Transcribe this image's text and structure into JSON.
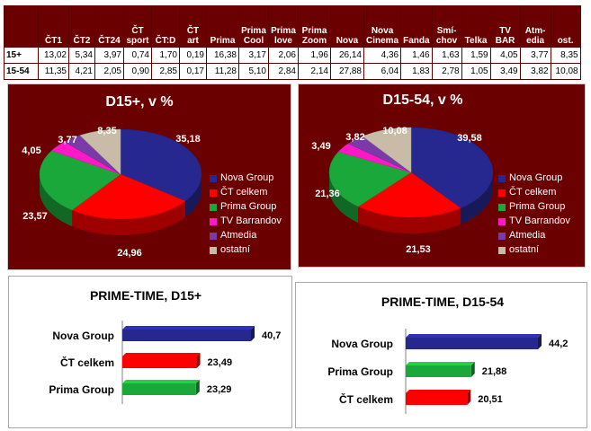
{
  "table": {
    "columns": [
      "ČT1",
      "ČT2",
      "ČT24",
      "ČT sport",
      "ČT:D",
      "ČT art",
      "Prima",
      "Prima Cool",
      "Prima love",
      "Prima Zoom",
      "Nova",
      "Nova Cinema",
      "Fanda",
      "Smí-chov",
      "Telka",
      "TV BAR",
      "Atm-edia",
      "ost."
    ],
    "rows": [
      {
        "label": "15+",
        "values": [
          "13,02",
          "5,34",
          "3,97",
          "0,74",
          "1,70",
          "0,19",
          "16,38",
          "3,17",
          "2,06",
          "1,96",
          "26,14",
          "4,36",
          "1,46",
          "1,63",
          "1,59",
          "4,05",
          "3,77",
          "8,35"
        ]
      },
      {
        "label": "15-54",
        "values": [
          "11,35",
          "4,21",
          "2,05",
          "0,90",
          "2,85",
          "0,17",
          "11,28",
          "5,10",
          "2,84",
          "2,14",
          "27,88",
          "6,04",
          "1,83",
          "2,78",
          "1,05",
          "3,49",
          "3,82",
          "10,08"
        ]
      }
    ]
  },
  "colors": {
    "nova": "#26288f",
    "ct": "#ff0000",
    "prima": "#1aa83a",
    "barrandov": "#ff19c6",
    "atmedia": "#7a3aa8",
    "ostatni": "#c8bca8",
    "panel": "#6b0000"
  },
  "chart_data": [
    {
      "type": "pie",
      "title": "D15+, v %",
      "legend_position": "right",
      "slices": [
        {
          "name": "Nova Group",
          "value": 35.18,
          "label": "35,18",
          "color": "#26288f"
        },
        {
          "name": "ČT celkem",
          "value": 24.96,
          "label": "24,96",
          "color": "#ff0000"
        },
        {
          "name": "Prima Group",
          "value": 23.57,
          "label": "23,57",
          "color": "#1aa83a"
        },
        {
          "name": "TV Barrandov",
          "value": 4.05,
          "label": "4,05",
          "color": "#ff19c6"
        },
        {
          "name": "Atmedia",
          "value": 3.77,
          "label": "3,77",
          "color": "#7a3aa8"
        },
        {
          "name": "ostatní",
          "value": 8.35,
          "label": "8,35",
          "color": "#c8bca8"
        }
      ]
    },
    {
      "type": "pie",
      "title": "D15-54, v %",
      "legend_position": "right",
      "slices": [
        {
          "name": "Nova Group",
          "value": 39.58,
          "label": "39,58",
          "color": "#26288f"
        },
        {
          "name": "ČT celkem",
          "value": 21.53,
          "label": "21,53",
          "color": "#ff0000"
        },
        {
          "name": "Prima Group",
          "value": 21.36,
          "label": "21,36",
          "color": "#1aa83a"
        },
        {
          "name": "TV Barrandov",
          "value": 3.49,
          "label": "3,49",
          "color": "#ff19c6"
        },
        {
          "name": "Atmedia",
          "value": 3.82,
          "label": "3,82",
          "color": "#7a3aa8"
        },
        {
          "name": "ostatní",
          "value": 10.08,
          "label": "10,08",
          "color": "#c8bca8"
        }
      ]
    },
    {
      "type": "bar",
      "orientation": "horizontal",
      "title": "PRIME-TIME, D15+",
      "categories": [
        "Nova Group",
        "ČT celkem",
        "Prima Group"
      ],
      "values": [
        40.7,
        23.49,
        23.29
      ],
      "labels": [
        "40,7",
        "23,49",
        "23,29"
      ],
      "colors": [
        "#26288f",
        "#ff0000",
        "#1aa83a"
      ],
      "xlim": [
        0,
        45
      ]
    },
    {
      "type": "bar",
      "orientation": "horizontal",
      "title": "PRIME-TIME, D15-54",
      "categories": [
        "Nova Group",
        "Prima Group",
        "ČT celkem"
      ],
      "values": [
        44.2,
        21.88,
        20.51
      ],
      "labels": [
        "44,2",
        "21,88",
        "20,51"
      ],
      "colors": [
        "#26288f",
        "#1aa83a",
        "#ff0000"
      ],
      "xlim": [
        0,
        48
      ]
    }
  ]
}
